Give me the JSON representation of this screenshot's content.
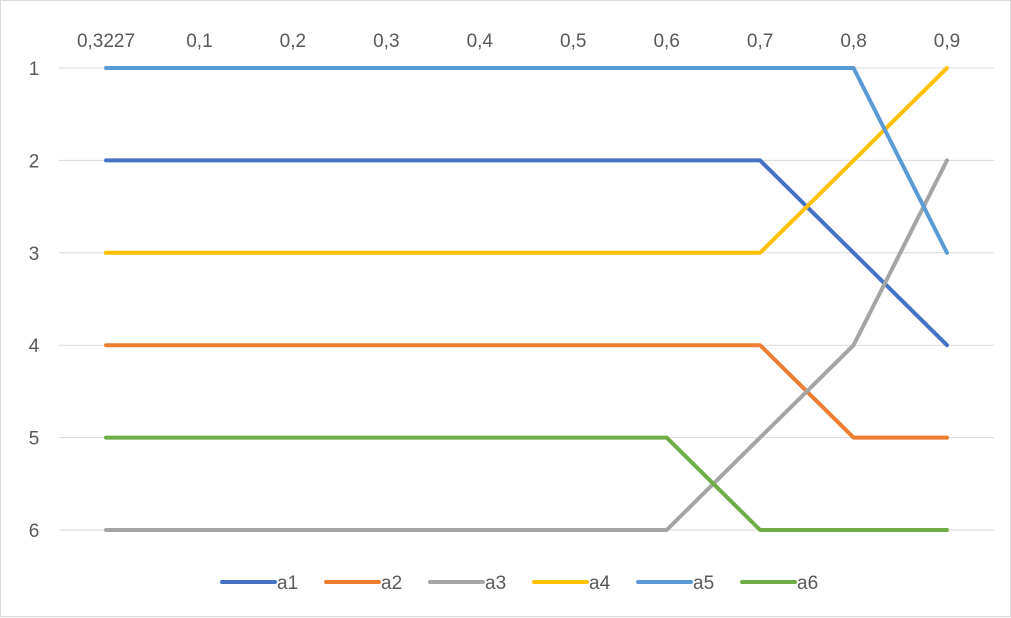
{
  "chart_data": {
    "type": "line",
    "title": "",
    "xlabel": "",
    "ylabel": "",
    "categories": [
      "0,3227",
      "0,1",
      "0,2",
      "0,3",
      "0,4",
      "0,5",
      "0,6",
      "0,7",
      "0,8",
      "0,9"
    ],
    "x_axis_position": "top",
    "y_reversed": true,
    "ylim": [
      1,
      6
    ],
    "y_ticks": [
      "1",
      "2",
      "3",
      "4",
      "5",
      "6"
    ],
    "grid": true,
    "legend_position": "bottom",
    "series": [
      {
        "name": "a1",
        "color": "#4472c4",
        "values": [
          2,
          2,
          2,
          2,
          2,
          2,
          2,
          2,
          3,
          4
        ]
      },
      {
        "name": "a2",
        "color": "#ed7d31",
        "values": [
          4,
          4,
          4,
          4,
          4,
          4,
          4,
          4,
          5,
          5
        ]
      },
      {
        "name": "a3",
        "color": "#a5a5a5",
        "values": [
          6,
          6,
          6,
          6,
          6,
          6,
          6,
          5,
          4,
          2
        ]
      },
      {
        "name": "a4",
        "color": "#ffc000",
        "values": [
          3,
          3,
          3,
          3,
          3,
          3,
          3,
          3,
          2,
          1
        ]
      },
      {
        "name": "a5",
        "color": "#5b9bd5",
        "values": [
          1,
          1,
          1,
          1,
          1,
          1,
          1,
          1,
          1,
          3
        ]
      },
      {
        "name": "a6",
        "color": "#70ad47",
        "values": [
          5,
          5,
          5,
          5,
          5,
          5,
          5,
          6,
          6,
          6
        ]
      }
    ]
  }
}
